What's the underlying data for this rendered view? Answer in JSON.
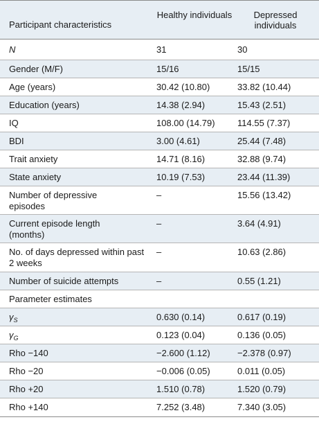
{
  "header": {
    "col1": "Participant characteristics",
    "col2": "Healthy individuals",
    "col3": "Depressed individuals"
  },
  "rows": [
    {
      "label": "N",
      "healthy": "31",
      "depressed": "30"
    },
    {
      "label": "Gender (M/F)",
      "healthy": "15/16",
      "depressed": "15/15"
    },
    {
      "label": "Age (years)",
      "healthy": "30.42 (10.80)",
      "depressed": "33.82 (10.44)"
    },
    {
      "label": "Education (years)",
      "healthy": "14.38 (2.94)",
      "depressed": "15.43 (2.51)"
    },
    {
      "label": "IQ",
      "healthy": "108.00 (14.79)",
      "depressed": "114.55 (7.37)"
    },
    {
      "label": "BDI",
      "healthy": "3.00 (4.61)",
      "depressed": "25.44 (7.48)"
    },
    {
      "label": "Trait anxiety",
      "healthy": "14.71 (8.16)",
      "depressed": "32.88 (9.74)"
    },
    {
      "label": "State anxiety",
      "healthy": "10.19 (7.53)",
      "depressed": "23.44 (11.39)"
    },
    {
      "label": "Number of depressive episodes",
      "healthy": "–",
      "depressed": "15.56 (13.42)"
    },
    {
      "label": "Current episode length (months)",
      "healthy": "–",
      "depressed": "3.64 (4.91)"
    },
    {
      "label": "No. of days depressed within past 2 weeks",
      "healthy": "–",
      "depressed": "10.63 (2.86)"
    },
    {
      "label": "Number of suicide attempts",
      "healthy": "–",
      "depressed": "0.55 (1.21)"
    },
    {
      "label": "Parameter estimates",
      "healthy": "",
      "depressed": ""
    },
    {
      "label": "γ",
      "label_sub": "S",
      "healthy": "0.630 (0.14)",
      "depressed": "0.617 (0.19)"
    },
    {
      "label": "γ",
      "label_sub": "G",
      "healthy": "0.123 (0.04)",
      "depressed": "0.136 (0.05)"
    },
    {
      "label": "Rho −140",
      "healthy": "−2.600 (1.12)",
      "depressed": "−2.378 (0.97)"
    },
    {
      "label": "Rho −20",
      "healthy": "−0.006 (0.05)",
      "depressed": "0.011 (0.05)"
    },
    {
      "label": "Rho +20",
      "healthy": "1.510 (0.78)",
      "depressed": "1.520 (0.79)"
    },
    {
      "label": "Rho +140",
      "healthy": "7.252 (3.48)",
      "depressed": "7.340 (3.05)"
    }
  ]
}
